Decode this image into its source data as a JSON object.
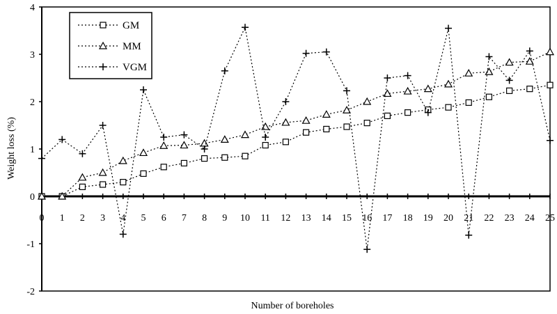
{
  "chart_data": {
    "type": "line",
    "xlabel": "Number of boreholes",
    "ylabel": "Weight loss (%)",
    "xlim": [
      0,
      25
    ],
    "ylim": [
      -2,
      4
    ],
    "x": [
      0,
      1,
      2,
      3,
      4,
      5,
      6,
      7,
      8,
      9,
      10,
      11,
      12,
      13,
      14,
      15,
      16,
      17,
      18,
      19,
      20,
      21,
      22,
      23,
      24,
      25
    ],
    "x_ticks": [
      "0",
      "1",
      "2",
      "3",
      "4",
      "5",
      "6",
      "7",
      "8",
      "9",
      "10",
      "11",
      "12",
      "13",
      "14",
      "15",
      "16",
      "17",
      "18",
      "19",
      "20",
      "21",
      "22",
      "23",
      "24",
      "25"
    ],
    "y_ticks": [
      "-2",
      "-1",
      "0",
      "1",
      "2",
      "3",
      "4"
    ],
    "grid": false,
    "legend_position": "top-left",
    "series": [
      {
        "name": "GM",
        "marker": "square",
        "values": [
          0,
          0,
          0.2,
          0.25,
          0.3,
          0.48,
          0.62,
          0.7,
          0.8,
          0.82,
          0.85,
          1.08,
          1.15,
          1.35,
          1.42,
          1.47,
          1.55,
          1.7,
          1.77,
          1.83,
          1.88,
          1.98,
          2.1,
          2.23,
          2.27,
          2.35
        ]
      },
      {
        "name": "MM",
        "marker": "triangle",
        "values": [
          0,
          0,
          0.4,
          0.5,
          0.75,
          0.92,
          1.07,
          1.08,
          1.12,
          1.2,
          1.3,
          1.47,
          1.56,
          1.6,
          1.73,
          1.82,
          2.0,
          2.17,
          2.22,
          2.27,
          2.37,
          2.6,
          2.63,
          2.83,
          2.85,
          3.05
        ]
      },
      {
        "name": "VGM",
        "marker": "plus",
        "values": [
          0.8,
          1.2,
          0.9,
          1.5,
          -0.8,
          2.25,
          1.25,
          1.3,
          1.0,
          2.65,
          3.57,
          1.25,
          2.0,
          3.02,
          3.05,
          2.23,
          -1.12,
          2.5,
          2.55,
          1.77,
          3.55,
          -0.82,
          2.95,
          2.45,
          3.07,
          1.18
        ]
      }
    ],
    "colors": {
      "line": "#000000",
      "background": "#ffffff"
    }
  }
}
